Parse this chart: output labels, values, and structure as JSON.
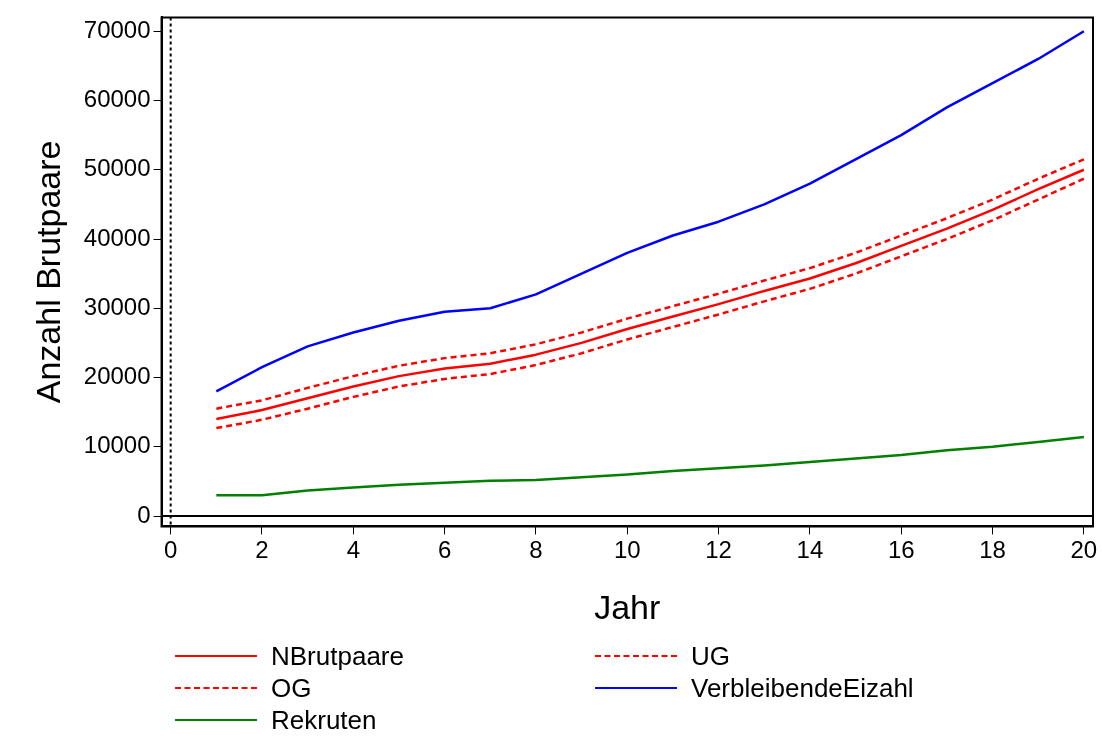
{
  "chart_data": {
    "type": "line",
    "xlabel": "Jahr",
    "ylabel": "Anzahl Brutpaare",
    "x": [
      1,
      2,
      3,
      4,
      5,
      6,
      7,
      8,
      9,
      10,
      11,
      12,
      13,
      14,
      15,
      16,
      17,
      18,
      19,
      20
    ],
    "series": [
      {
        "name": "NBrutpaare",
        "color": "#ff0000",
        "line_style": "solid",
        "values": [
          14000,
          15300,
          17000,
          18700,
          20200,
          21300,
          22000,
          23300,
          25000,
          27000,
          28800,
          30600,
          32500,
          34300,
          36500,
          39000,
          41500,
          44200,
          47200,
          50000
        ]
      },
      {
        "name": "OG",
        "color": "#ff0000",
        "line_style": "dashed",
        "values": [
          15500,
          16700,
          18500,
          20200,
          21700,
          22800,
          23500,
          24800,
          26500,
          28500,
          30300,
          32100,
          34000,
          35800,
          38000,
          40500,
          43000,
          45700,
          48700,
          51500
        ]
      },
      {
        "name": "Rekruten",
        "color": "#008000",
        "line_style": "solid",
        "values": [
          3000,
          3000,
          3700,
          4100,
          4500,
          4800,
          5100,
          5200,
          5600,
          6000,
          6500,
          6900,
          7300,
          7800,
          8300,
          8800,
          9500,
          10000,
          10700,
          11400
        ]
      },
      {
        "name": "UG",
        "color": "#ff0000",
        "line_style": "dashed",
        "values": [
          12700,
          13900,
          15500,
          17200,
          18700,
          19800,
          20500,
          21800,
          23500,
          25500,
          27300,
          29100,
          31000,
          32800,
          35000,
          37500,
          40000,
          42700,
          45700,
          48700
        ]
      },
      {
        "name": "VerbleibendeEizahl",
        "color": "#0000ff",
        "line_style": "solid",
        "values": [
          18000,
          21500,
          24500,
          26500,
          28200,
          29500,
          30000,
          32000,
          35000,
          38000,
          40500,
          42500,
          45000,
          48000,
          51500,
          55000,
          59000,
          62500,
          66000,
          70000
        ]
      }
    ],
    "xlim": [
      -0.2,
      20.2
    ],
    "xticks": [
      0,
      2,
      4,
      6,
      8,
      10,
      12,
      14,
      16,
      18,
      20
    ],
    "ylim": [
      -1500,
      72000
    ],
    "yticks": [
      0,
      10000,
      20000,
      30000,
      40000,
      50000,
      60000,
      70000
    ],
    "ref_lines": [
      {
        "axis": "y",
        "value": 0,
        "color": "#000000",
        "line_style": "solid"
      },
      {
        "axis": "x",
        "value": 0,
        "color": "#000000",
        "line_style": "dotted"
      }
    ],
    "grid": false,
    "legend": "bottom",
    "marker": "none"
  }
}
